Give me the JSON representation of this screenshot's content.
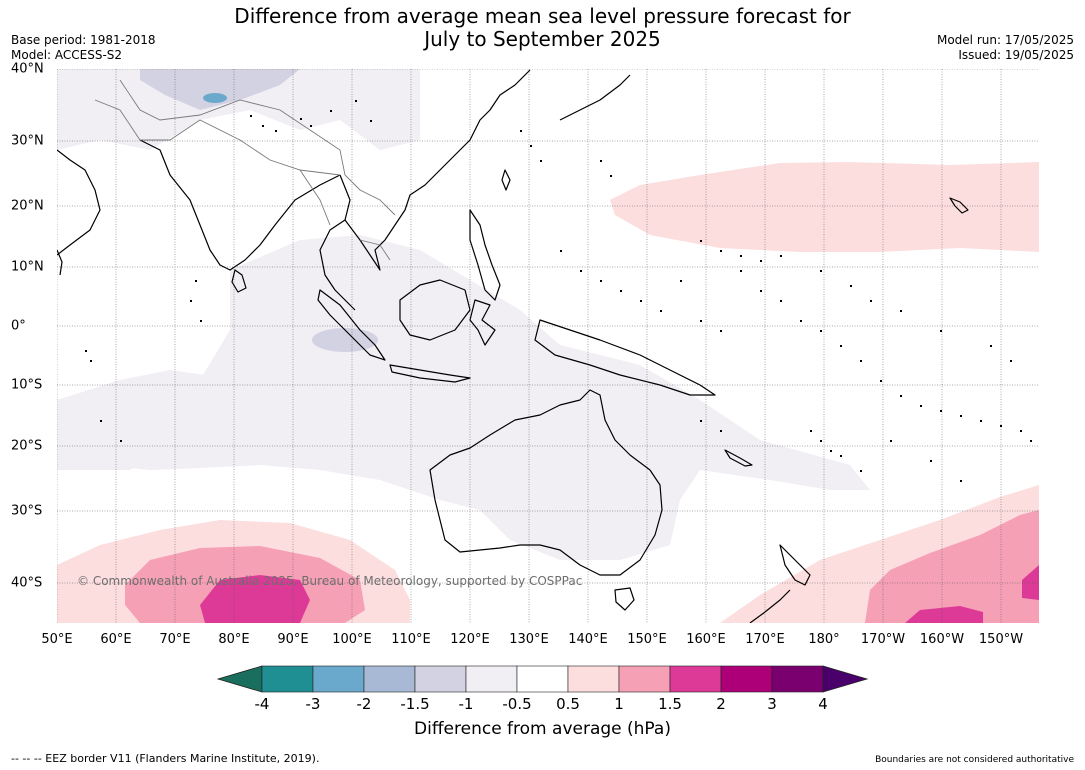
{
  "title": {
    "line1": "Difference from average mean sea level pressure forecast for",
    "line2": "July to September 2025"
  },
  "meta_left": {
    "base_period": "Base period: 1981-2018",
    "model": "Model: ACCESS-S2"
  },
  "meta_right": {
    "model_run": "Model run: 17/05/2025",
    "issued": "Issued: 19/05/2025"
  },
  "map": {
    "region": "Indian Ocean, Maritime Continent, Australia and western Pacific",
    "lon_labels": [
      "50°E",
      "60°E",
      "70°E",
      "80°E",
      "90°E",
      "100°E",
      "110°E",
      "120°E",
      "130°E",
      "140°E",
      "150°E",
      "160°E",
      "170°E",
      "180°",
      "170°W",
      "160°W",
      "150°W"
    ],
    "lat_labels": [
      "40°N",
      "30°N",
      "20°N",
      "10°N",
      "0°",
      "10°S",
      "20°S",
      "30°S",
      "40°S"
    ],
    "copyright": "© Commonwealth of Australia 2025, Bureau of Meteorology, supported by COSPPac",
    "anomaly_regions": [
      {
        "area": "Tibetan Plateau / Himalaya",
        "category": "-1.5 to -1"
      },
      {
        "area": "Northern Indian Ocean",
        "category": "-1 to -0.5"
      },
      {
        "area": "Southern Indian Ocean and Australia",
        "category": "-1 to -0.5"
      },
      {
        "area": "Eastern equatorial Indian Ocean west of Sumatra",
        "category": "-1.5 to -1"
      },
      {
        "area": "North Pacific 20°N",
        "category": "0.5 to 1"
      },
      {
        "area": "Southern Indian Ocean 40°S",
        "category": "0.5 to 2 (core 1.5 to 2)"
      },
      {
        "area": "South Pacific east of New Zealand",
        "category": "0.5 to 2 (core 1.5 to 2)"
      }
    ]
  },
  "colorbar": {
    "ticks": [
      "-4",
      "-3",
      "-2",
      "-1.5",
      "-1",
      "-0.5",
      "0.5",
      "1",
      "1.5",
      "2",
      "3",
      "4"
    ],
    "colors": [
      "#1a6e5e",
      "#1f8f94",
      "#6aa9cc",
      "#a8b9d6",
      "#d2d2e2",
      "#f1eef4",
      "#ffffff",
      "#fcdede",
      "#f6a0b6",
      "#dd3a98",
      "#ad0078",
      "#7a0070",
      "#4a006b"
    ],
    "label": "Difference from average (hPa)"
  },
  "footer": {
    "eez": "--  --  -- EEZ border V11 (Flanders Marine Institute, 2019).",
    "boundaries": "Boundaries are not considered authoritative"
  }
}
